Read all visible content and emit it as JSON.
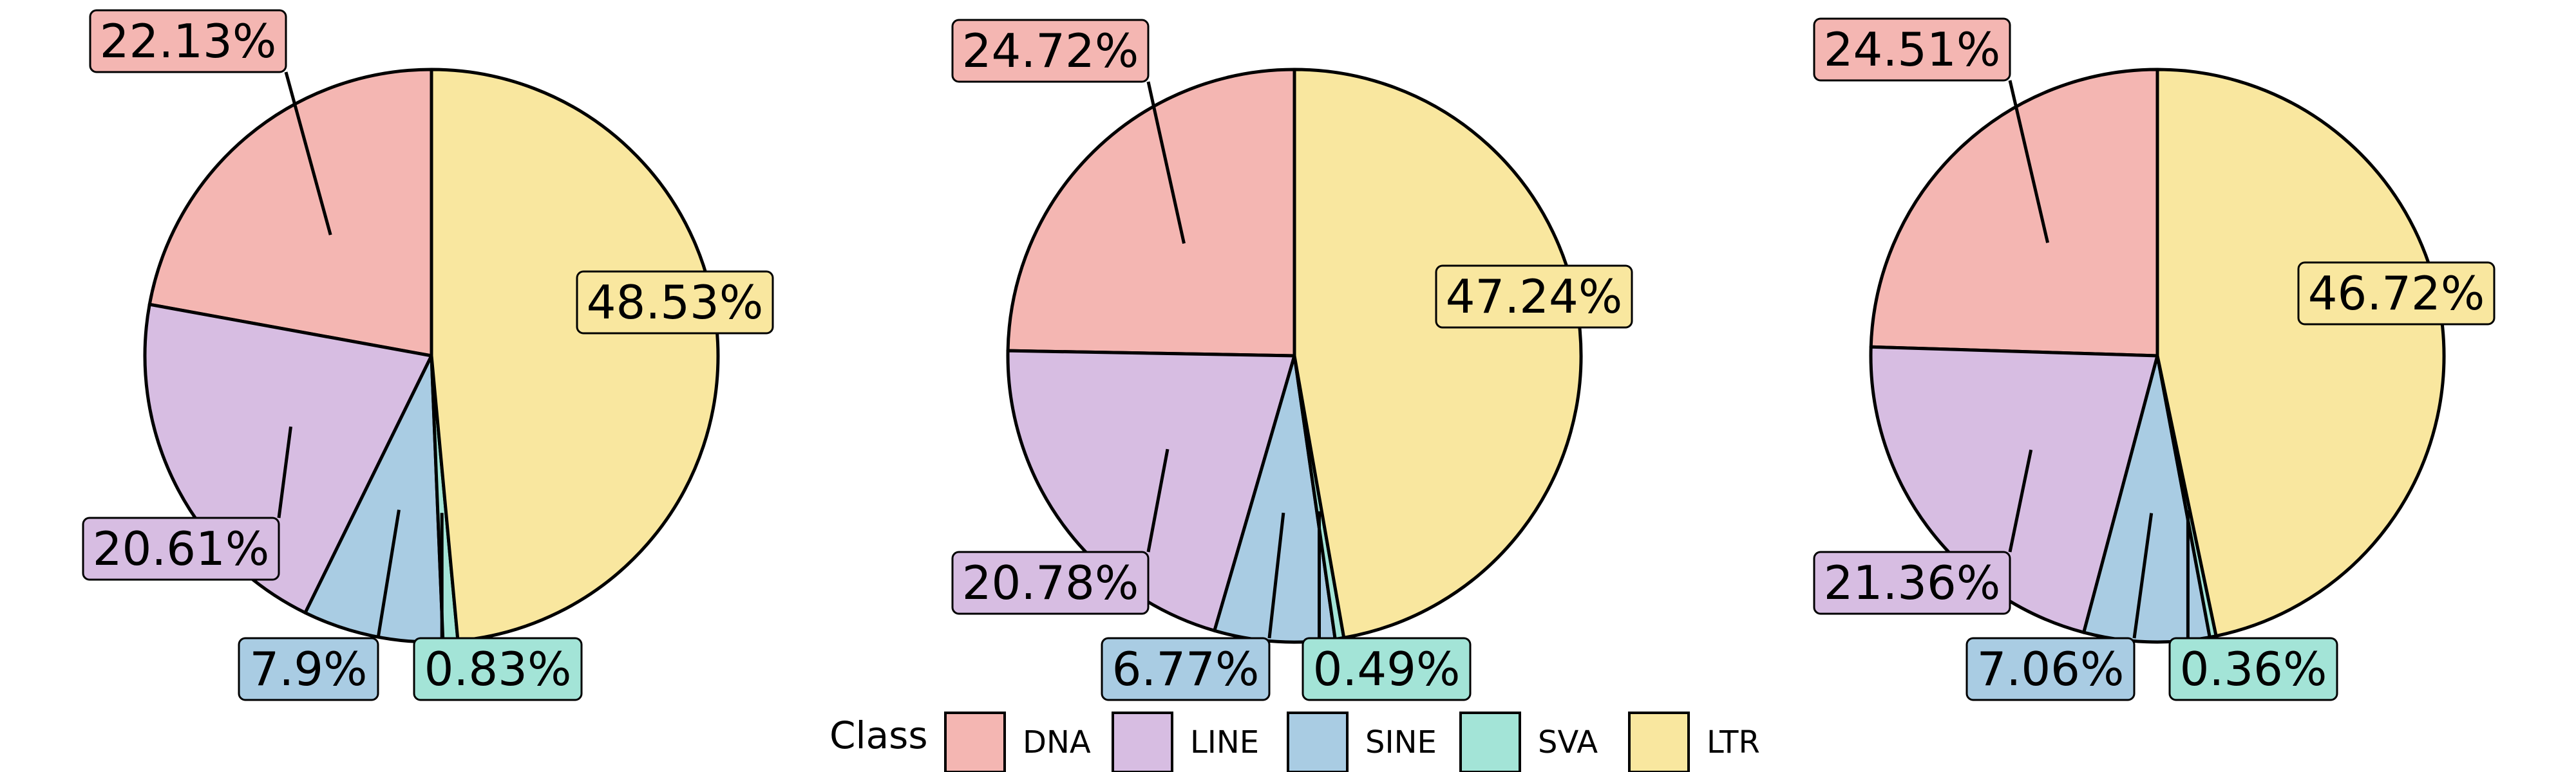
{
  "chart_data": [
    {
      "type": "pie",
      "slices": [
        {
          "label": "DNA",
          "value": 22.13,
          "text": "22.13%"
        },
        {
          "label": "LINE",
          "value": 20.61,
          "text": "20.61%"
        },
        {
          "label": "SINE",
          "value": 7.9,
          "text": "7.9%"
        },
        {
          "label": "SVA",
          "value": 0.83,
          "text": "0.83%"
        },
        {
          "label": "LTR",
          "value": 48.53,
          "text": "48.53%"
        }
      ]
    },
    {
      "type": "pie",
      "slices": [
        {
          "label": "DNA",
          "value": 24.72,
          "text": "24.72%"
        },
        {
          "label": "LINE",
          "value": 20.78,
          "text": "20.78%"
        },
        {
          "label": "SINE",
          "value": 6.77,
          "text": "6.77%"
        },
        {
          "label": "SVA",
          "value": 0.49,
          "text": "0.49%"
        },
        {
          "label": "LTR",
          "value": 47.24,
          "text": "47.24%"
        }
      ]
    },
    {
      "type": "pie",
      "slices": [
        {
          "label": "DNA",
          "value": 24.51,
          "text": "24.51%"
        },
        {
          "label": "LINE",
          "value": 21.36,
          "text": "21.36%"
        },
        {
          "label": "SINE",
          "value": 7.06,
          "text": "7.06%"
        },
        {
          "label": "SVA",
          "value": 0.36,
          "text": "0.36%"
        },
        {
          "label": "LTR",
          "value": 46.72,
          "text": "46.72%"
        }
      ]
    }
  ],
  "legend": {
    "title": "Class",
    "placement": "bottom",
    "items": [
      {
        "label": "DNA",
        "color": "#F4B6B2"
      },
      {
        "label": "LINE",
        "color": "#D7BDE2"
      },
      {
        "label": "SINE",
        "color": "#A9CCE3"
      },
      {
        "label": "SVA",
        "color": "#A3E4D7"
      },
      {
        "label": "LTR",
        "color": "#F9E79F"
      }
    ]
  }
}
